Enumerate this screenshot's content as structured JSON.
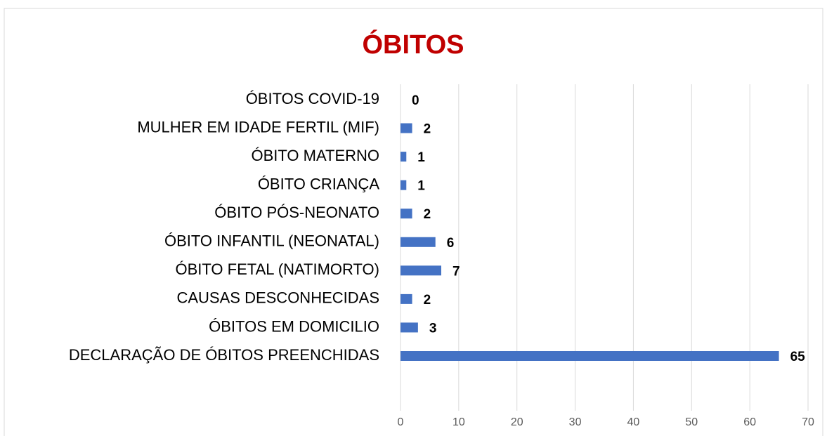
{
  "chart_data": {
    "type": "hbar",
    "title": "ÓBITOS",
    "categories": [
      "ÓBITOS COVID-19",
      "MULHER EM IDADE FERTIL (MIF)",
      "ÓBITO MATERNO",
      "ÓBITO CRIANÇA",
      "ÓBITO PÓS-NEONATO",
      "ÓBITO INFANTIL (NEONATAL)",
      "ÓBITO FETAL (NATIMORTO)",
      "CAUSAS DESCONHECIDAS",
      "ÓBITOS EM DOMICILIO",
      "DECLARAÇÃO DE ÓBITOS PREENCHIDAS"
    ],
    "values": [
      0,
      2,
      1,
      1,
      2,
      6,
      7,
      2,
      3,
      65
    ],
    "color": "#4472c4",
    "xlim": [
      0,
      70
    ],
    "xticks": [
      0,
      10,
      20,
      30,
      40,
      50,
      60,
      70
    ],
    "grid": true
  }
}
